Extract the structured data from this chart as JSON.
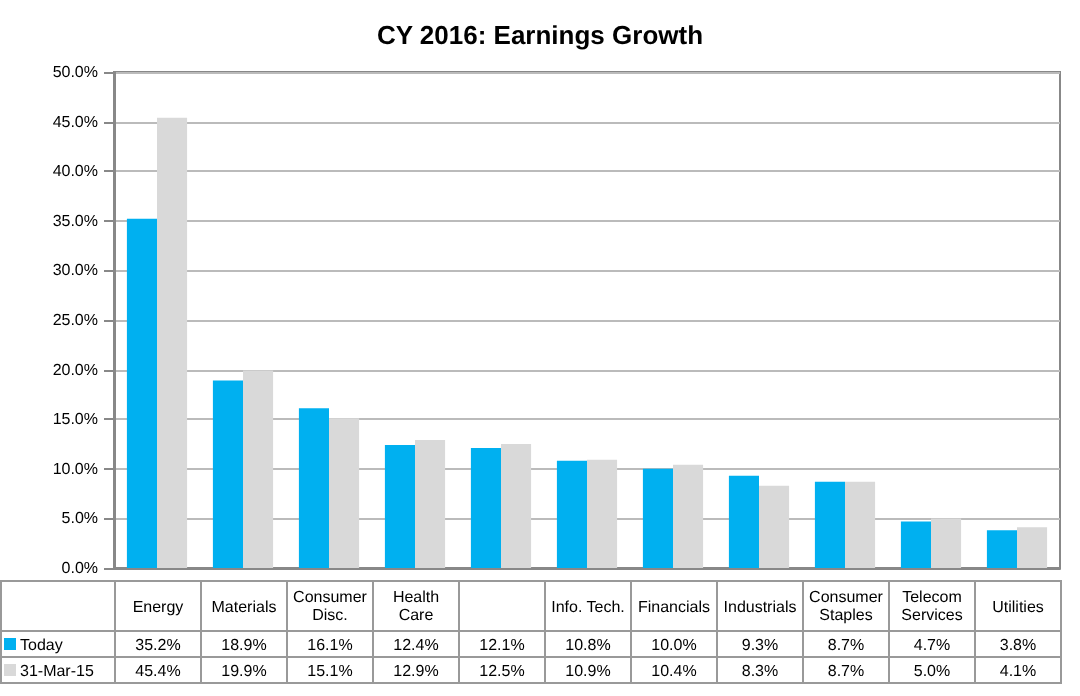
{
  "chart_data": {
    "type": "bar",
    "title": "CY 2016: Earnings Growth",
    "categories": [
      "Energy",
      "Materials",
      "Consumer Disc.",
      "Health Care",
      null,
      "Info. Tech.",
      "Financials",
      "Industrials",
      "Consumer Staples",
      "Telecom Services",
      "Utilities"
    ],
    "series": [
      {
        "name": "Today",
        "color": "#00b0f0",
        "values": [
          35.2,
          18.9,
          16.1,
          12.4,
          12.1,
          10.8,
          10.0,
          9.3,
          8.7,
          4.7,
          3.8
        ],
        "value_labels": [
          "35.2%",
          "18.9%",
          "16.1%",
          "12.4%",
          "12.1%",
          "10.8%",
          "10.0%",
          "9.3%",
          "8.7%",
          "4.7%",
          "3.8%"
        ]
      },
      {
        "name": "31-Mar-15",
        "color": "#d9d9d9",
        "values": [
          45.4,
          19.9,
          15.1,
          12.9,
          12.5,
          10.9,
          10.4,
          8.3,
          8.7,
          5.0,
          4.1
        ],
        "value_labels": [
          "45.4%",
          "19.9%",
          "15.1%",
          "12.9%",
          "12.5%",
          "10.9%",
          "10.4%",
          "8.3%",
          "8.7%",
          "5.0%",
          "4.1%"
        ]
      }
    ],
    "ylim": [
      0,
      50
    ],
    "yticks": [
      {
        "value": 0,
        "label": "0.0%"
      },
      {
        "value": 5,
        "label": "5.0%"
      },
      {
        "value": 10,
        "label": "10.0%"
      },
      {
        "value": 15,
        "label": "15.0%"
      },
      {
        "value": 20,
        "label": "20.0%"
      },
      {
        "value": 25,
        "label": "25.0%"
      },
      {
        "value": 30,
        "label": "30.0%"
      },
      {
        "value": 35,
        "label": "35.0%"
      },
      {
        "value": 40,
        "label": "40.0%"
      },
      {
        "value": 45,
        "label": "45.0%"
      },
      {
        "value": 50,
        "label": "50.0%"
      }
    ],
    "grid": "y",
    "legend": "bottom"
  }
}
